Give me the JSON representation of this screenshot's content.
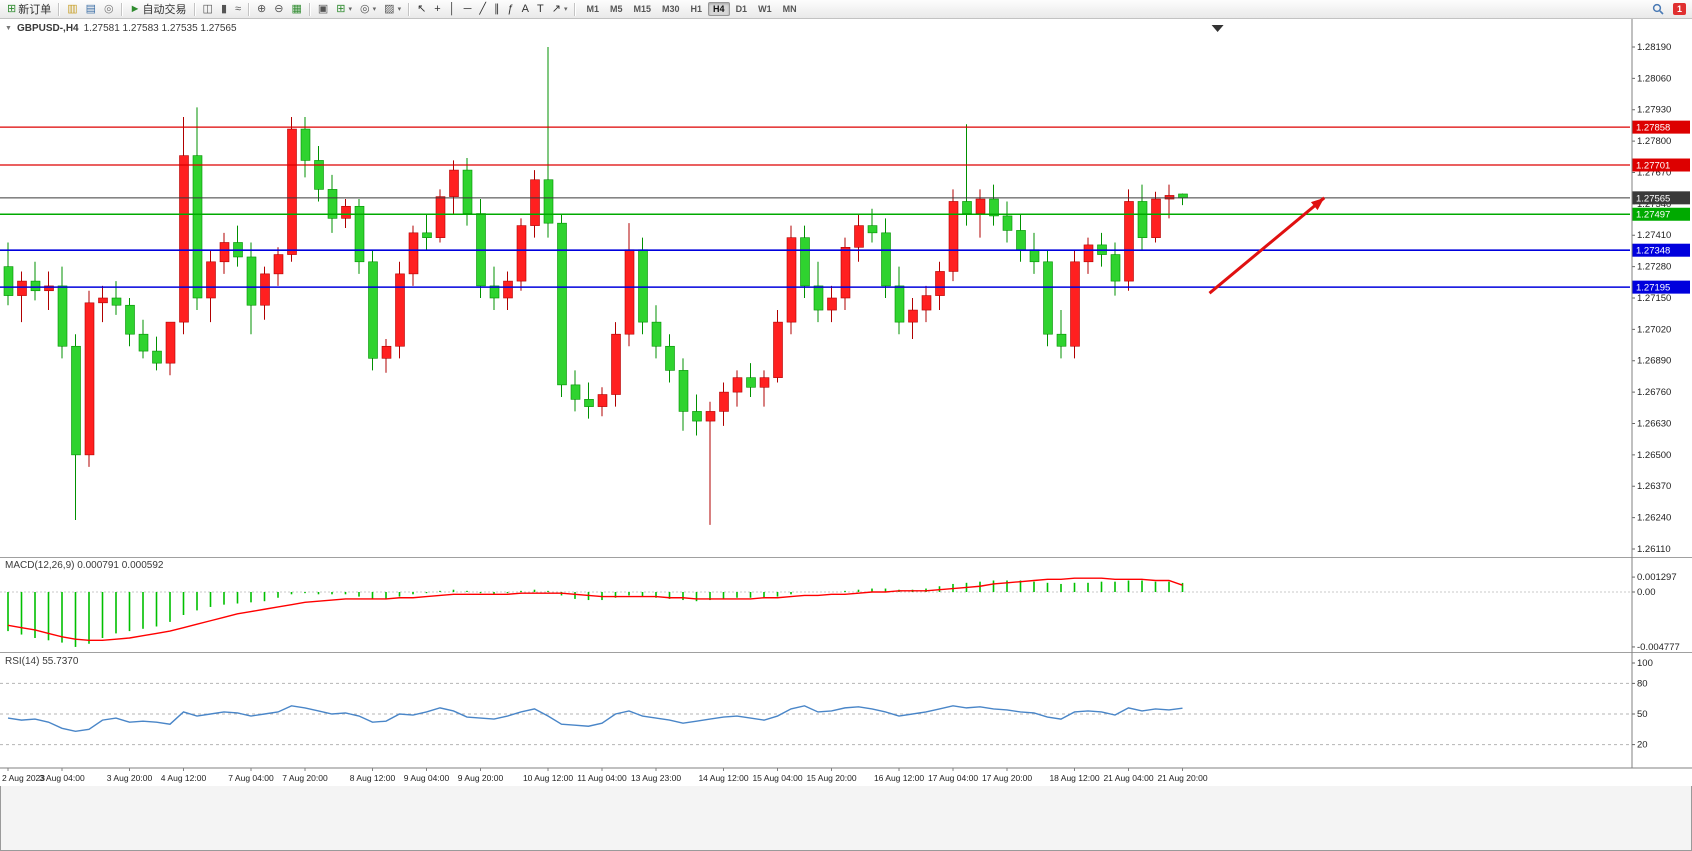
{
  "toolbar": {
    "groups": [
      {
        "items": [
          {
            "name": "new-order",
            "icon": "⊞",
            "icon_color": "#2e8b2e",
            "label": "新订单"
          }
        ]
      },
      {
        "items": [
          {
            "name": "market-watch",
            "icon": "▥",
            "icon_color": "#c79f27"
          },
          {
            "name": "data-window",
            "icon": "▤",
            "icon_color": "#3b6ea5"
          },
          {
            "name": "navigator",
            "icon": "◎",
            "icon_color": "#777777"
          }
        ]
      },
      {
        "items": [
          {
            "name": "autotrade",
            "icon": "►",
            "icon_color": "#2e8b2e",
            "label": "自动交易"
          }
        ]
      },
      {
        "items": [
          {
            "name": "bar-chart",
            "icon": "◫",
            "icon_color": "#555555"
          },
          {
            "name": "candle-chart",
            "icon": "▮",
            "icon_color": "#555555"
          },
          {
            "name": "line-chart",
            "icon": "≈",
            "icon_color": "#555555"
          }
        ]
      },
      {
        "items": [
          {
            "name": "zoom-in",
            "icon": "⊕",
            "icon_color": "#555555"
          },
          {
            "name": "zoom-out",
            "icon": "⊖",
            "icon_color": "#555555"
          },
          {
            "name": "tile-windows",
            "icon": "▦",
            "icon_color": "#2e8b2e"
          }
        ]
      },
      {
        "items": [
          {
            "name": "auto-arrange",
            "icon": "▣",
            "icon_color": "#555555"
          },
          {
            "name": "indicators",
            "icon": "⊞",
            "icon_color": "#2e8b2e",
            "dropdown": true
          },
          {
            "name": "periods",
            "icon": "◎",
            "icon_color": "#555555",
            "dropdown": true
          },
          {
            "name": "templates",
            "icon": "▨",
            "icon_color": "#555555",
            "dropdown": true
          }
        ]
      },
      {
        "items": [
          {
            "name": "cursor",
            "icon": "↖",
            "icon_color": "#333333"
          },
          {
            "name": "crosshair",
            "icon": "+",
            "icon_color": "#333333"
          },
          {
            "name": "vertical-line",
            "icon": "│",
            "icon_color": "#333333"
          },
          {
            "name": "horizontal-line",
            "icon": "─",
            "icon_color": "#333333"
          },
          {
            "name": "trendline",
            "icon": "╱",
            "icon_color": "#333333"
          },
          {
            "name": "channel",
            "icon": "∥",
            "icon_color": "#333333"
          },
          {
            "name": "fibonacci",
            "icon": "ƒ",
            "icon_color": "#333333"
          },
          {
            "name": "text",
            "icon": "A",
            "icon_color": "#333333"
          },
          {
            "name": "text-label",
            "icon": "T",
            "icon_color": "#333333"
          },
          {
            "name": "arrows-tool",
            "icon": "↗",
            "icon_color": "#333333",
            "dropdown": true
          }
        ]
      }
    ],
    "timeframes": [
      "M1",
      "M5",
      "M15",
      "M30",
      "H1",
      "H4",
      "D1",
      "W1",
      "MN"
    ],
    "active_timeframe": "H4",
    "notification_count": "1"
  },
  "chart": {
    "symbol_label": "GBPUSD-,H4",
    "ohlc_text": "1.27581 1.27583 1.27535 1.27565",
    "macd_label": "MACD(12,26,9) 0.000791 0.000592",
    "rsi_label": "RSI(14) 55.7370"
  },
  "chart_data": {
    "type": "candlestick",
    "symbol": "GBPUSD",
    "timeframe": "H4",
    "colors": {
      "up": "#ff2020",
      "up_border": "#b00000",
      "down": "#2fd32f",
      "down_border": "#009000",
      "macd_hist": "#00c000",
      "macd_signal": "#ff0000",
      "rsi_line": "#4a86c8"
    },
    "price_axis_ticks": [
      "1.28190",
      "1.28060",
      "1.27930",
      "1.27800",
      "1.27670",
      "1.27540",
      "1.27410",
      "1.27280",
      "1.27150",
      "1.27020",
      "1.26890",
      "1.26760",
      "1.26630",
      "1.26500",
      "1.26370",
      "1.26240",
      "1.26110"
    ],
    "hlines": [
      {
        "price": 1.27858,
        "label": "1.27858",
        "color": "#dd0000",
        "width": 1.2
      },
      {
        "price": 1.27701,
        "label": "1.27701",
        "color": "#dd0000",
        "width": 1.2
      },
      {
        "price": 1.27565,
        "label": "1.27565",
        "color": "#3a3a3a",
        "width": 1
      },
      {
        "price": 1.27497,
        "label": "1.27497",
        "color": "#00aa00",
        "width": 1.6
      },
      {
        "price": 1.27348,
        "label": "1.27348",
        "color": "#0000dd",
        "width": 1.6
      },
      {
        "price": 1.27195,
        "label": "1.27195",
        "color": "#0000dd",
        "width": 1.6
      }
    ],
    "candles": [
      [
        1.2728,
        1.2738,
        1.2712,
        1.2716
      ],
      [
        1.2716,
        1.2726,
        1.2705,
        1.2722
      ],
      [
        1.2722,
        1.273,
        1.2714,
        1.2718
      ],
      [
        1.2718,
        1.2726,
        1.271,
        1.272
      ],
      [
        1.272,
        1.2728,
        1.269,
        1.2695
      ],
      [
        1.2695,
        1.27,
        1.2623,
        1.265
      ],
      [
        1.265,
        1.2718,
        1.2645,
        1.2713
      ],
      [
        1.2713,
        1.272,
        1.2705,
        1.2715
      ],
      [
        1.2715,
        1.2722,
        1.2708,
        1.2712
      ],
      [
        1.2712,
        1.2715,
        1.2695,
        1.27
      ],
      [
        1.27,
        1.2706,
        1.269,
        1.2693
      ],
      [
        1.2693,
        1.2699,
        1.2685,
        1.2688
      ],
      [
        1.2688,
        1.2695,
        1.2683,
        1.2705
      ],
      [
        1.2705,
        1.279,
        1.27,
        1.2774
      ],
      [
        1.2774,
        1.2794,
        1.271,
        1.2715
      ],
      [
        1.2715,
        1.2735,
        1.2705,
        1.273
      ],
      [
        1.273,
        1.2742,
        1.2725,
        1.2738
      ],
      [
        1.2738,
        1.2745,
        1.2728,
        1.2732
      ],
      [
        1.2732,
        1.2738,
        1.27,
        1.2712
      ],
      [
        1.2712,
        1.2728,
        1.2706,
        1.2725
      ],
      [
        1.2725,
        1.2736,
        1.272,
        1.2733
      ],
      [
        1.2733,
        1.279,
        1.273,
        1.2785
      ],
      [
        1.2785,
        1.279,
        1.2765,
        1.2772
      ],
      [
        1.2772,
        1.2778,
        1.2755,
        1.276
      ],
      [
        1.276,
        1.2766,
        1.2742,
        1.2748
      ],
      [
        1.2748,
        1.2756,
        1.2744,
        1.2753
      ],
      [
        1.2753,
        1.2756,
        1.2725,
        1.273
      ],
      [
        1.273,
        1.2735,
        1.2685,
        1.269
      ],
      [
        1.269,
        1.2698,
        1.2684,
        1.2695
      ],
      [
        1.2695,
        1.273,
        1.269,
        1.2725
      ],
      [
        1.2725,
        1.2745,
        1.272,
        1.2742
      ],
      [
        1.2742,
        1.275,
        1.2735,
        1.274
      ],
      [
        1.274,
        1.276,
        1.2738,
        1.2757
      ],
      [
        1.2757,
        1.2772,
        1.275,
        1.2768
      ],
      [
        1.2768,
        1.2773,
        1.2745,
        1.275
      ],
      [
        1.275,
        1.2756,
        1.2715,
        1.272
      ],
      [
        1.272,
        1.2728,
        1.271,
        1.2715
      ],
      [
        1.2715,
        1.2726,
        1.271,
        1.2722
      ],
      [
        1.2722,
        1.2748,
        1.2718,
        1.2745
      ],
      [
        1.2745,
        1.2768,
        1.274,
        1.2764
      ],
      [
        1.2764,
        1.2819,
        1.274,
        1.2746
      ],
      [
        1.2746,
        1.275,
        1.2674,
        1.2679
      ],
      [
        1.2679,
        1.2685,
        1.2668,
        1.2673
      ],
      [
        1.2673,
        1.268,
        1.2665,
        1.267
      ],
      [
        1.267,
        1.2678,
        1.2666,
        1.2675
      ],
      [
        1.2675,
        1.2705,
        1.267,
        1.27
      ],
      [
        1.27,
        1.2746,
        1.2695,
        1.2735
      ],
      [
        1.2735,
        1.274,
        1.27,
        1.2705
      ],
      [
        1.2705,
        1.2712,
        1.269,
        1.2695
      ],
      [
        1.2695,
        1.27,
        1.268,
        1.2685
      ],
      [
        1.2685,
        1.269,
        1.266,
        1.2668
      ],
      [
        1.2668,
        1.2675,
        1.2658,
        1.2664
      ],
      [
        1.2664,
        1.2672,
        1.2621,
        1.2668
      ],
      [
        1.2668,
        1.268,
        1.2662,
        1.2676
      ],
      [
        1.2676,
        1.2685,
        1.267,
        1.2682
      ],
      [
        1.2682,
        1.2688,
        1.2674,
        1.2678
      ],
      [
        1.2678,
        1.2685,
        1.267,
        1.2682
      ],
      [
        1.2682,
        1.271,
        1.268,
        1.2705
      ],
      [
        1.2705,
        1.2745,
        1.27,
        1.274
      ],
      [
        1.274,
        1.2745,
        1.2715,
        1.272
      ],
      [
        1.272,
        1.273,
        1.2705,
        1.271
      ],
      [
        1.271,
        1.272,
        1.2705,
        1.2715
      ],
      [
        1.2715,
        1.274,
        1.271,
        1.2736
      ],
      [
        1.2736,
        1.275,
        1.273,
        1.2745
      ],
      [
        1.2745,
        1.2752,
        1.2738,
        1.2742
      ],
      [
        1.2742,
        1.2748,
        1.2715,
        1.272
      ],
      [
        1.272,
        1.2728,
        1.27,
        1.2705
      ],
      [
        1.2705,
        1.2715,
        1.2698,
        1.271
      ],
      [
        1.271,
        1.272,
        1.2705,
        1.2716
      ],
      [
        1.2716,
        1.273,
        1.271,
        1.2726
      ],
      [
        1.2726,
        1.276,
        1.2722,
        1.2755
      ],
      [
        1.2755,
        1.2787,
        1.2745,
        1.275
      ],
      [
        1.275,
        1.276,
        1.274,
        1.2756
      ],
      [
        1.2756,
        1.2762,
        1.2745,
        1.2749
      ],
      [
        1.2749,
        1.2755,
        1.2738,
        1.2743
      ],
      [
        1.2743,
        1.275,
        1.273,
        1.2735
      ],
      [
        1.2735,
        1.2742,
        1.2725,
        1.273
      ],
      [
        1.273,
        1.2735,
        1.2695,
        1.27
      ],
      [
        1.27,
        1.271,
        1.269,
        1.2695
      ],
      [
        1.2695,
        1.2735,
        1.269,
        1.273
      ],
      [
        1.273,
        1.274,
        1.2725,
        1.2737
      ],
      [
        1.2737,
        1.2742,
        1.2728,
        1.2733
      ],
      [
        1.2733,
        1.2738,
        1.2716,
        1.2722
      ],
      [
        1.2722,
        1.276,
        1.2718,
        1.2755
      ],
      [
        1.2755,
        1.2762,
        1.2735,
        1.274
      ],
      [
        1.274,
        1.2759,
        1.2738,
        1.2756
      ],
      [
        1.2756,
        1.2762,
        1.2748,
        1.27575
      ],
      [
        1.27581,
        1.27583,
        1.27535,
        1.27565
      ]
    ],
    "time_labels": [
      {
        "i": 0,
        "t": "2 Aug 2023"
      },
      {
        "i": 4,
        "t": "3 Aug 04:00"
      },
      {
        "i": 9,
        "t": "3 Aug 20:00"
      },
      {
        "i": 13,
        "t": "4 Aug 12:00"
      },
      {
        "i": 18,
        "t": "7 Aug 04:00"
      },
      {
        "i": 22,
        "t": "7 Aug 20:00"
      },
      {
        "i": 27,
        "t": "8 Aug 12:00"
      },
      {
        "i": 31,
        "t": "9 Aug 04:00"
      },
      {
        "i": 35,
        "t": "9 Aug 20:00"
      },
      {
        "i": 40,
        "t": "10 Aug 12:00"
      },
      {
        "i": 44,
        "t": "11 Aug 04:00"
      },
      {
        "i": 48,
        "t": "13 Aug 23:00"
      },
      {
        "i": 53,
        "t": "14 Aug 12:00"
      },
      {
        "i": 57,
        "t": "15 Aug 04:00"
      },
      {
        "i": 61,
        "t": "15 Aug 20:00"
      },
      {
        "i": 66,
        "t": "16 Aug 12:00"
      },
      {
        "i": 70,
        "t": "17 Aug 04:00"
      },
      {
        "i": 74,
        "t": "17 Aug 20:00"
      },
      {
        "i": 79,
        "t": "18 Aug 12:00"
      },
      {
        "i": 83,
        "t": "21 Aug 04:00"
      },
      {
        "i": 87,
        "t": "21 Aug 20:00"
      }
    ],
    "macd": {
      "main": [
        -0.0034,
        -0.0037,
        -0.004,
        -0.0042,
        -0.0044,
        -0.004777,
        -0.0045,
        -0.004,
        -0.0036,
        -0.0034,
        -0.0032,
        -0.003,
        -0.0026,
        -0.002,
        -0.0016,
        -0.0013,
        -0.0011,
        -0.001,
        -0.0009,
        -0.0008,
        -0.0005,
        -0.0002,
        -0.0001,
        -0.0002,
        -0.0002,
        -0.0002,
        -0.0004,
        -0.0006,
        -0.0006,
        -0.0004,
        -0.0002,
        -0.0001,
        0.0001,
        0.0002,
        0.0001,
        -0.0001,
        -0.0002,
        -0.0001,
        0.0001,
        0.0002,
        0.0001,
        -0.0003,
        -0.0006,
        -0.0007,
        -0.0007,
        -0.0005,
        -0.0003,
        -0.0004,
        -0.0005,
        -0.0006,
        -0.0007,
        -0.0008,
        -0.0007,
        -0.0006,
        -0.0005,
        -0.0005,
        -0.0005,
        -0.0004,
        -0.0002,
        0.0,
        0.0,
        0.0,
        0.0001,
        0.0002,
        0.0003,
        0.0003,
        0.0002,
        0.0002,
        0.0003,
        0.0005,
        0.0007,
        0.0008,
        0.0009,
        0.001,
        0.001,
        0.001,
        0.0009,
        0.0008,
        0.0007,
        0.0008,
        0.0008,
        0.0009,
        0.0009,
        0.001,
        0.001,
        0.0009,
        0.0009,
        0.000791
      ],
      "signal": [
        -0.0029,
        -0.0031,
        -0.0033,
        -0.0036,
        -0.0039,
        -0.0041,
        -0.0042,
        -0.0042,
        -0.0041,
        -0.004,
        -0.0038,
        -0.0036,
        -0.0034,
        -0.0031,
        -0.0028,
        -0.0025,
        -0.0022,
        -0.0019,
        -0.0017,
        -0.0015,
        -0.0013,
        -0.0011,
        -0.0009,
        -0.0008,
        -0.0007,
        -0.0006,
        -0.0006,
        -0.0006,
        -0.0006,
        -0.0005,
        -0.0005,
        -0.0004,
        -0.0003,
        -0.0002,
        -0.0002,
        -0.0002,
        -0.0002,
        -0.0002,
        -0.0001,
        -0.0001,
        -0.0001,
        -0.0001,
        -0.0002,
        -0.0003,
        -0.0004,
        -0.0004,
        -0.0004,
        -0.0004,
        -0.0004,
        -0.0005,
        -0.0005,
        -0.0006,
        -0.0006,
        -0.0006,
        -0.0006,
        -0.0006,
        -0.0005,
        -0.0005,
        -0.0004,
        -0.0003,
        -0.0003,
        -0.0002,
        -0.0002,
        -0.0001,
        0.0,
        0.0,
        0.0001,
        0.0001,
        0.0001,
        0.0002,
        0.0003,
        0.0004,
        0.0005,
        0.0007,
        0.0008,
        0.0009,
        0.001,
        0.0011,
        0.0011,
        0.0012,
        0.0012,
        0.0012,
        0.0011,
        0.0011,
        0.0011,
        0.001,
        0.001,
        0.000592
      ],
      "axis_labels": [
        {
          "v": 0.001297,
          "t": "0.001297"
        },
        {
          "v": 0,
          "t": "0.00"
        },
        {
          "v": -0.004777,
          "t": "-0.004777"
        }
      ]
    },
    "rsi": {
      "values": [
        46,
        44,
        45,
        42,
        36,
        33,
        35,
        44,
        46,
        42,
        43,
        42,
        40,
        52,
        48,
        50,
        52,
        51,
        48,
        50,
        52,
        58,
        56,
        53,
        50,
        51,
        48,
        42,
        43,
        50,
        49,
        52,
        56,
        53,
        47,
        46,
        45,
        48,
        52,
        55,
        48,
        40,
        39,
        38,
        41,
        50,
        53,
        48,
        46,
        44,
        41,
        43,
        45,
        47,
        48,
        46,
        44,
        48,
        55,
        58,
        52,
        53,
        56,
        57,
        55,
        52,
        48,
        50,
        52,
        55,
        58,
        56,
        57,
        55,
        54,
        52,
        51,
        47,
        45,
        52,
        53,
        52,
        49,
        56,
        53,
        55,
        54,
        55.74
      ],
      "levels": [
        80,
        50,
        20
      ],
      "axis_labels": [
        {
          "v": 100,
          "t": "100"
        },
        {
          "v": 80,
          "t": "80"
        },
        {
          "v": 50,
          "t": "50"
        },
        {
          "v": 20,
          "t": "20"
        }
      ]
    },
    "arrow": {
      "from_bar": 89,
      "from_price": 1.2717,
      "to_bar": 97.5,
      "to_price": 1.27565
    },
    "shift_marker_bar": 89.6
  }
}
